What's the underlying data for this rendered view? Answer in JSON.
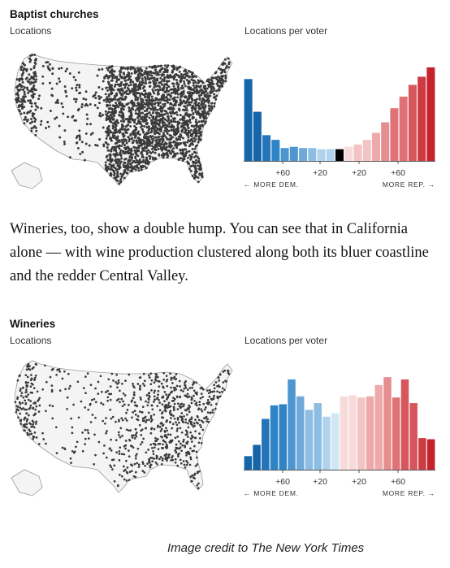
{
  "colors": {
    "dem_scale": [
      "#1565a8",
      "#2374b8",
      "#2f84c6",
      "#4d96d0",
      "#6ea9da",
      "#8ebde3",
      "#b0d3ed",
      "#d2e7f6"
    ],
    "rep_scale": [
      "#f7dada",
      "#f3c4c4",
      "#eeaaaa",
      "#e68e8f",
      "#de7276",
      "#d5575c",
      "#cc3a42",
      "#c5232c"
    ],
    "dots": "#3a3a3a",
    "axis": "#555555"
  },
  "paragraph": "Wineries, too, show a double hump. You can see that in California alone — with wine production clustered along both its bluer coastline and the redder Central Valley.",
  "credit": "Image credit to The New York Times",
  "charts": [
    {
      "title": "Baptist churches",
      "map_label": "Locations",
      "map_icon": "us-map-baptist-churches-locations",
      "chart_label": "Locations per voter",
      "left_label": "← MORE DEM.",
      "right_label": "MORE REP. →",
      "density": "high"
    },
    {
      "title": "Wineries",
      "map_label": "Locations",
      "map_icon": "us-map-wineries-locations",
      "chart_label": "Locations per voter",
      "left_label": "← MORE DEM.",
      "right_label": "MORE REP. →",
      "density": "low"
    }
  ],
  "chart_data": [
    {
      "type": "bar",
      "title": "Baptist churches",
      "subtitle": "Locations per voter",
      "xlabel": "",
      "ylabel": "",
      "tick_labels": [
        "+60",
        "+20",
        "+20",
        "+60"
      ],
      "direction_labels": [
        "← MORE DEM.",
        "MORE REP. →"
      ],
      "values": [
        0.7,
        0.42,
        0.22,
        0.18,
        0.11,
        0.12,
        0.11,
        0.11,
        0.1,
        0.1,
        0.1,
        0.12,
        0.14,
        0.18,
        0.24,
        0.33,
        0.45,
        0.55,
        0.65,
        0.72,
        0.8
      ],
      "ylim": [
        0,
        0.82
      ],
      "grid": false
    },
    {
      "type": "bar",
      "title": "Wineries",
      "subtitle": "Locations per voter",
      "xlabel": "",
      "ylabel": "",
      "tick_labels": [
        "+60",
        "+20",
        "+20",
        "+60"
      ],
      "direction_labels": [
        "← MORE DEM.",
        "MORE REP. →"
      ],
      "values": [
        0.12,
        0.22,
        0.45,
        0.57,
        0.58,
        0.8,
        0.65,
        0.53,
        0.59,
        0.47,
        0.5,
        0.65,
        0.66,
        0.64,
        0.65,
        0.75,
        0.82,
        0.64,
        0.8,
        0.59,
        0.28,
        0.27
      ],
      "ylim": [
        0,
        0.85
      ],
      "grid": false
    }
  ]
}
